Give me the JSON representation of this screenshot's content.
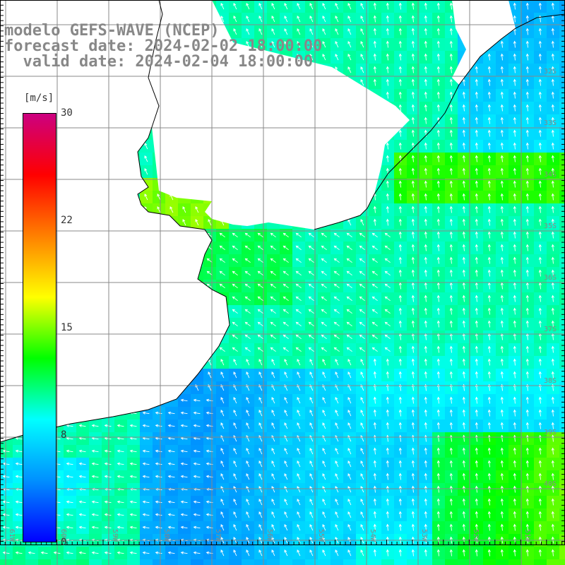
{
  "header": {
    "model": "modelo GEFS-WAVE (NCEP)",
    "forecast": "forecast date: 2024-02-02 18:00:00",
    "valid": "  valid date: 2024-02-04 18:00:00"
  },
  "colorbar": {
    "unit": "[m/s]",
    "ticks": [
      "30",
      "22",
      "15",
      "8",
      "0"
    ],
    "min": 0,
    "max": 30,
    "colors": [
      "#0000ff",
      "#0090ff",
      "#00ffff",
      "#00ff00",
      "#ffff00",
      "#ff8000",
      "#ff0000",
      "#cc0080"
    ]
  },
  "map": {
    "lat_labels": [
      "32S",
      "33S",
      "34S",
      "35S",
      "36S",
      "37S",
      "38S",
      "39S",
      "40S"
    ],
    "lon_labels": [
      "61W",
      "60W",
      "59W",
      "58W",
      "57W",
      "56W",
      "55W",
      "54W",
      "53W",
      "52W",
      "51W"
    ],
    "land_color": "#ffffff",
    "grid_color": "#888888",
    "arrow_color": "#ffffff",
    "coast_color": "#000000"
  }
}
